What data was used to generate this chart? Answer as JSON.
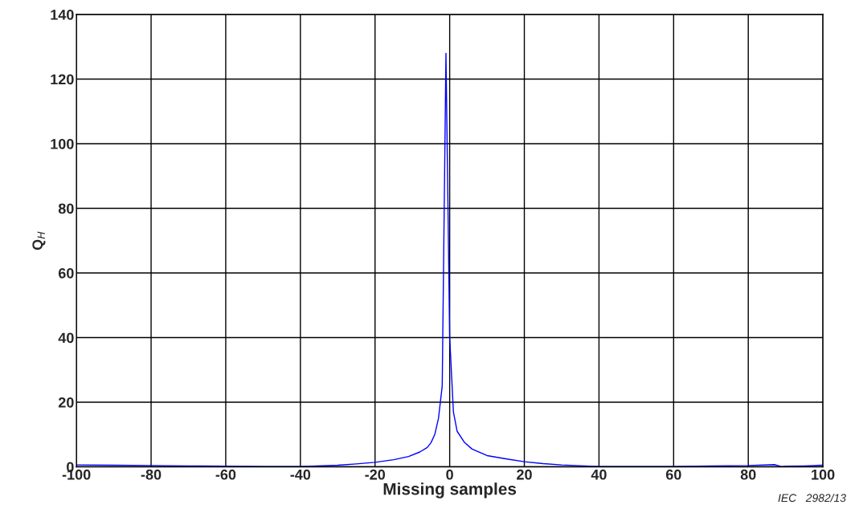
{
  "chart_data": {
    "type": "line",
    "xlabel": "Missing samples",
    "ylabel": "Q$_{H}$",
    "x": [
      -100,
      -90,
      -80,
      -70,
      -60,
      -50,
      -40,
      -30,
      -25,
      -20,
      -15,
      -11,
      -8,
      -6,
      -5,
      -4,
      -3,
      -2,
      -1,
      0,
      1,
      2,
      4,
      6,
      10,
      15,
      20,
      25,
      30,
      40,
      50,
      60,
      70,
      80,
      87,
      89,
      90,
      95,
      100
    ],
    "series": [
      {
        "color": "#0000ff",
        "values": [
          0.6,
          0.5,
          0.4,
          0.3,
          0.2,
          0.1,
          0.1,
          0.5,
          0.9,
          1.4,
          2.2,
          3.2,
          4.6,
          6.0,
          7.5,
          10,
          15,
          25,
          128,
          40,
          17,
          11,
          7.5,
          5.5,
          3.5,
          2.5,
          1.6,
          1.0,
          0.6,
          0.1,
          0.1,
          0.1,
          0.3,
          0.4,
          0.7,
          0.0,
          0.2,
          0.3,
          0.5
        ]
      }
    ],
    "xlim": [
      -100,
      100
    ],
    "ylim": [
      0,
      140
    ],
    "xticks": [
      -100,
      -80,
      -60,
      -40,
      -20,
      0,
      20,
      40,
      60,
      80,
      100
    ],
    "yticks": [
      0,
      20,
      40,
      60,
      80,
      100,
      120,
      140
    ],
    "grid": true,
    "annotations": [
      "IEC   2982/13"
    ]
  }
}
